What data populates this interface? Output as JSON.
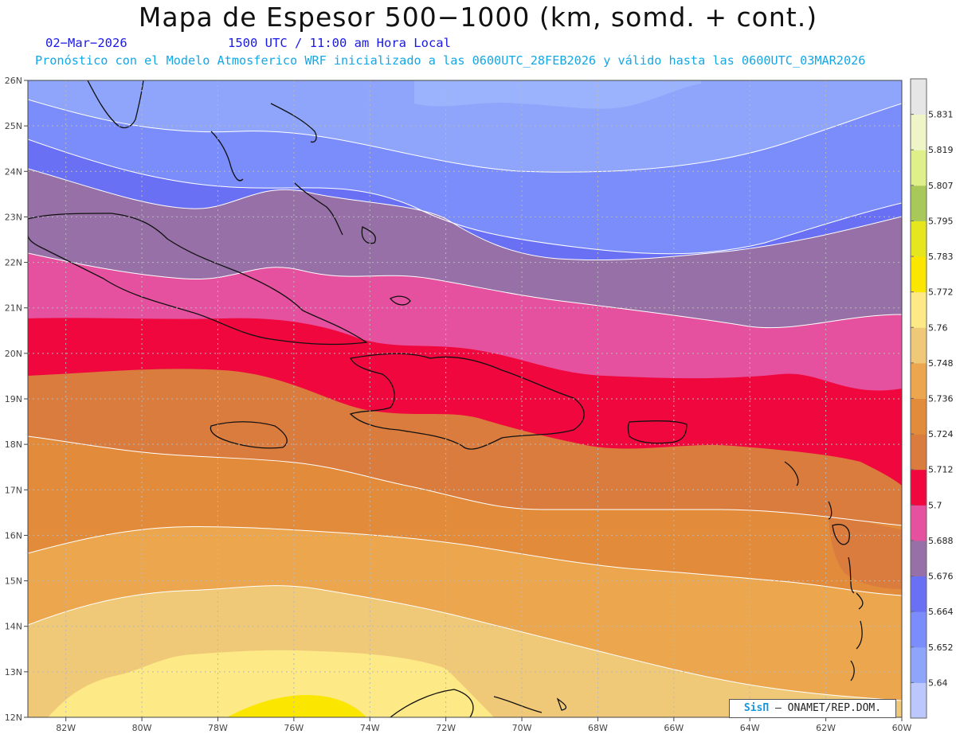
{
  "title": "Mapa de Espesor 500−1000 (km, somd. + cont.)",
  "date_label": "02−Mar−2026",
  "time_label": "1500 UTC / 11:00 am Hora Local",
  "forecast_label": "Pronóstico con el Modelo Atmosferico WRF inicializado a las 0600UTC_28FEB2026 y válido hasta las  0600UTC_03MAR2026",
  "credit": {
    "brand": "SisΠ",
    "text": "– ONAMET/REP.DOM."
  },
  "map": {
    "lat_range": [
      12,
      26
    ],
    "lon_range": [
      -83,
      -60
    ],
    "lat_ticks": [
      "26N",
      "25N",
      "24N",
      "23N",
      "22N",
      "21N",
      "20N",
      "19N",
      "18N",
      "17N",
      "16N",
      "15N",
      "14N",
      "13N",
      "12N"
    ],
    "lon_ticks": [
      "82W",
      "80W",
      "78W",
      "76W",
      "74W",
      "72W",
      "70W",
      "68W",
      "66W",
      "64W",
      "62W",
      "60W"
    ],
    "grid": true
  },
  "colorbar": {
    "colors": [
      "#bcc8fb",
      "#8ea5fb",
      "#7b8dfb",
      "#6a70f4",
      "#9670a6",
      "#e6519f",
      "#f0073d",
      "#d97c3e",
      "#e28c3b",
      "#eca74e",
      "#f0c978",
      "#fde986",
      "#fbe600",
      "#e6e61e",
      "#a8c85a",
      "#dff08a",
      "#eff5c7",
      "#e6e6e6"
    ],
    "labels": [
      "5.64",
      "5.652",
      "5.664",
      "5.676",
      "5.688",
      "5.7",
      "5.712",
      "5.724",
      "5.736",
      "5.748",
      "5.76",
      "5.772",
      "5.783",
      "5.795",
      "5.807",
      "5.819",
      "5.831"
    ]
  }
}
